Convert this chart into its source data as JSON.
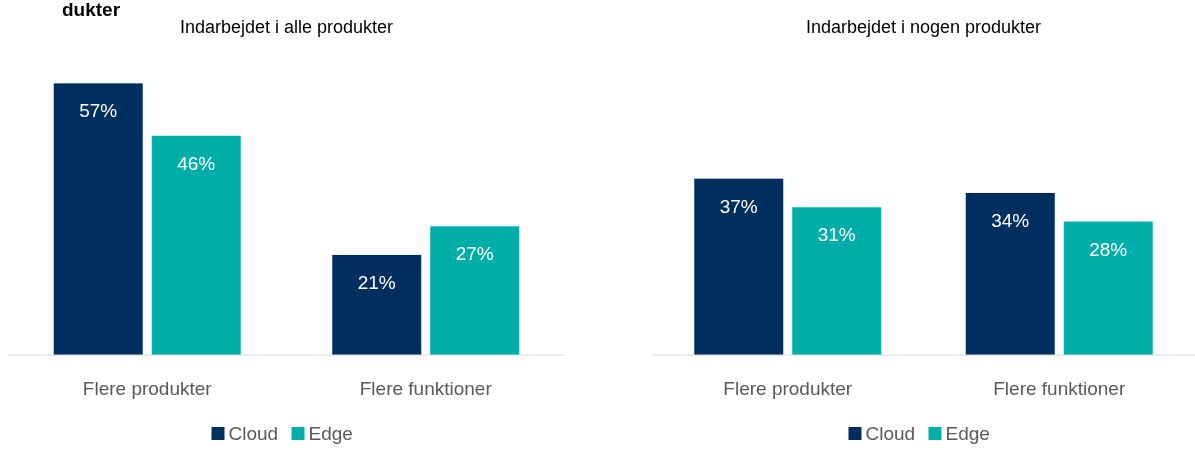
{
  "chart_data": [
    {
      "type": "bar",
      "title": "Indarbejdet i alle produkter",
      "annotations": [
        "dukter"
      ],
      "categories": [
        "Flere produkter",
        "Flere funktioner"
      ],
      "series": [
        {
          "name": "Cloud",
          "color": "#002f5f",
          "values": [
            57,
            21
          ],
          "value_labels": [
            "57%",
            "21%"
          ]
        },
        {
          "name": "Edge",
          "color": "#00ada8",
          "values": [
            46,
            27
          ],
          "value_labels": [
            "46%",
            "27%"
          ]
        }
      ],
      "legend": "bottom"
    },
    {
      "type": "bar",
      "title": "Indarbejdet i nogen produkter",
      "categories": [
        "Flere produkter",
        "Flere funktioner"
      ],
      "series": [
        {
          "name": "Cloud",
          "color": "#002f5f",
          "values": [
            37,
            34
          ],
          "value_labels": [
            "37%",
            "34%"
          ]
        },
        {
          "name": "Edge",
          "color": "#00ada8",
          "values": [
            31,
            28
          ],
          "value_labels": [
            "31%",
            "28%"
          ]
        }
      ],
      "legend": "bottom"
    }
  ]
}
